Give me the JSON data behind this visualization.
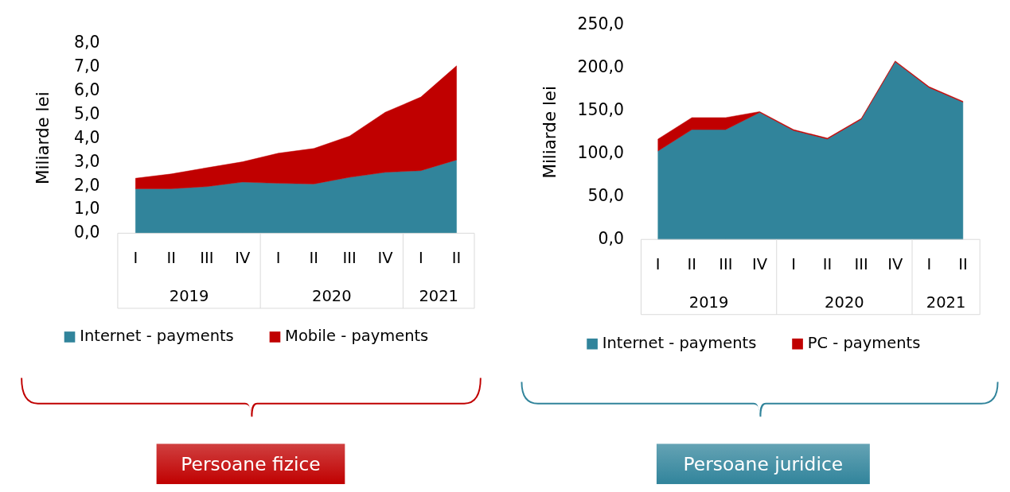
{
  "chart_data": [
    {
      "type": "area",
      "stacked": true,
      "ylabel": "Miliarde lei",
      "categories": [
        "I",
        "II",
        "III",
        "IV",
        "I",
        "II",
        "III",
        "IV",
        "I",
        "II"
      ],
      "ylim": [
        0,
        8
      ],
      "yticks": [
        {
          "value": 0,
          "label": "0,0"
        },
        {
          "value": 1,
          "label": "1,0"
        },
        {
          "value": 2,
          "label": "2,0"
        },
        {
          "value": 3,
          "label": "3,0"
        },
        {
          "value": 4,
          "label": "4,0"
        },
        {
          "value": 5,
          "label": "5,0"
        },
        {
          "value": 6,
          "label": "6,0"
        },
        {
          "value": 7,
          "label": "7,0"
        },
        {
          "value": 8,
          "label": "8,0"
        }
      ],
      "legend": "bottom",
      "series": [
        {
          "name": "Internet - payments",
          "color": "#31849b",
          "values": [
            1.87,
            1.87,
            1.96,
            2.15,
            2.1,
            2.07,
            2.35,
            2.56,
            2.63,
            3.08
          ]
        },
        {
          "name": "Mobile - payments",
          "color": "#c00000",
          "values": [
            0.44,
            0.62,
            0.79,
            0.85,
            1.26,
            1.49,
            1.73,
            2.52,
            3.09,
            3.95
          ]
        }
      ],
      "annotations": [
        "2019",
        "2020",
        "2021",
        "Persoane fizice"
      ]
    },
    {
      "type": "area",
      "stacked": true,
      "ylabel": "Miliarde lei",
      "categories": [
        "I",
        "II",
        "III",
        "IV",
        "I",
        "II",
        "III",
        "IV",
        "I",
        "II"
      ],
      "ylim": [
        0,
        250
      ],
      "yticks": [
        {
          "value": 0,
          "label": "0,0"
        },
        {
          "value": 50,
          "label": "50,0"
        },
        {
          "value": 100,
          "label": "100,0"
        },
        {
          "value": 150,
          "label": "150,0"
        },
        {
          "value": 200,
          "label": "200,0"
        },
        {
          "value": 250,
          "label": "250,0"
        }
      ],
      "legend": "bottom",
      "series": [
        {
          "name": "Internet - payments",
          "color": "#31849b",
          "values": [
            103,
            128,
            128,
            148,
            127,
            117,
            140,
            207,
            177,
            160
          ]
        },
        {
          "name": "PC - payments",
          "color": "#c00000",
          "values": [
            14,
            14,
            14,
            1,
            1,
            1,
            1,
            1,
            1,
            1
          ]
        }
      ],
      "annotations": [
        "2019",
        "2020",
        "2021",
        "Persoane juridice"
      ]
    }
  ]
}
